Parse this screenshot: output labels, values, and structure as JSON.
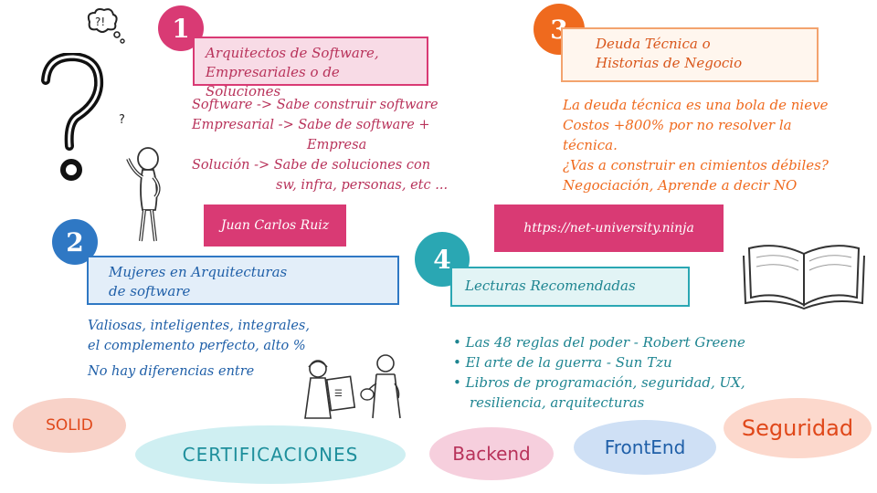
{
  "section1": {
    "number": "1",
    "title_line1": "Arquitectos de Software,",
    "title_line2": "Empresariales o de Soluciones",
    "lines": [
      "Software -> Sabe construir software",
      "Empresarial -> Sabe de software +",
      "Empresa",
      "Solución -> Sabe de soluciones con",
      "sw, infra, personas, etc ..."
    ]
  },
  "section2": {
    "number": "2",
    "title_line1": "Mujeres en Arquitecturas",
    "title_line2": "de software",
    "lines": [
      "Valiosas, inteligentes, integrales,",
      "el complemento perfecto, alto %",
      "No hay diferencias entre"
    ]
  },
  "section3": {
    "number": "3",
    "title_line1": "Deuda Técnica o",
    "title_line2": "Historias de Negocio",
    "lines": [
      "La deuda técnica es una bola de nieve",
      "Costos +800% por no resolver la",
      "técnica.",
      "¿Vas a construir en cimientos débiles?",
      "Negociación, Aprende a decir NO"
    ]
  },
  "section4": {
    "number": "4",
    "title": "Lecturas Recomendadas",
    "items": [
      "Las 48 reglas del poder - Robert Greene",
      "El arte de la guerra - Sun Tzu",
      "Libros de programación, seguridad, UX,",
      "resiliencia, arquitecturas"
    ]
  },
  "author": "Juan Carlos Ruiz",
  "website": "https://net-university.ninja",
  "question_small": "?",
  "pills": {
    "solid": "SOLID",
    "certificaciones": "CERTIFICACIONES",
    "backend": "Backend",
    "frontend": "FrontEnd",
    "seguridad": "Seguridad"
  },
  "colors": {
    "pink": "#d93a74",
    "orange": "#ef6a1e",
    "blue": "#2f78c4",
    "teal": "#2aa7b3",
    "purple_text": "#b8325a",
    "dark_blue_text": "#1f5fa8"
  },
  "icons": [
    "thought-bubble-icon",
    "question-mark-icon",
    "stick-figure-icon",
    "open-book-icon",
    "people-sketch-icon"
  ]
}
